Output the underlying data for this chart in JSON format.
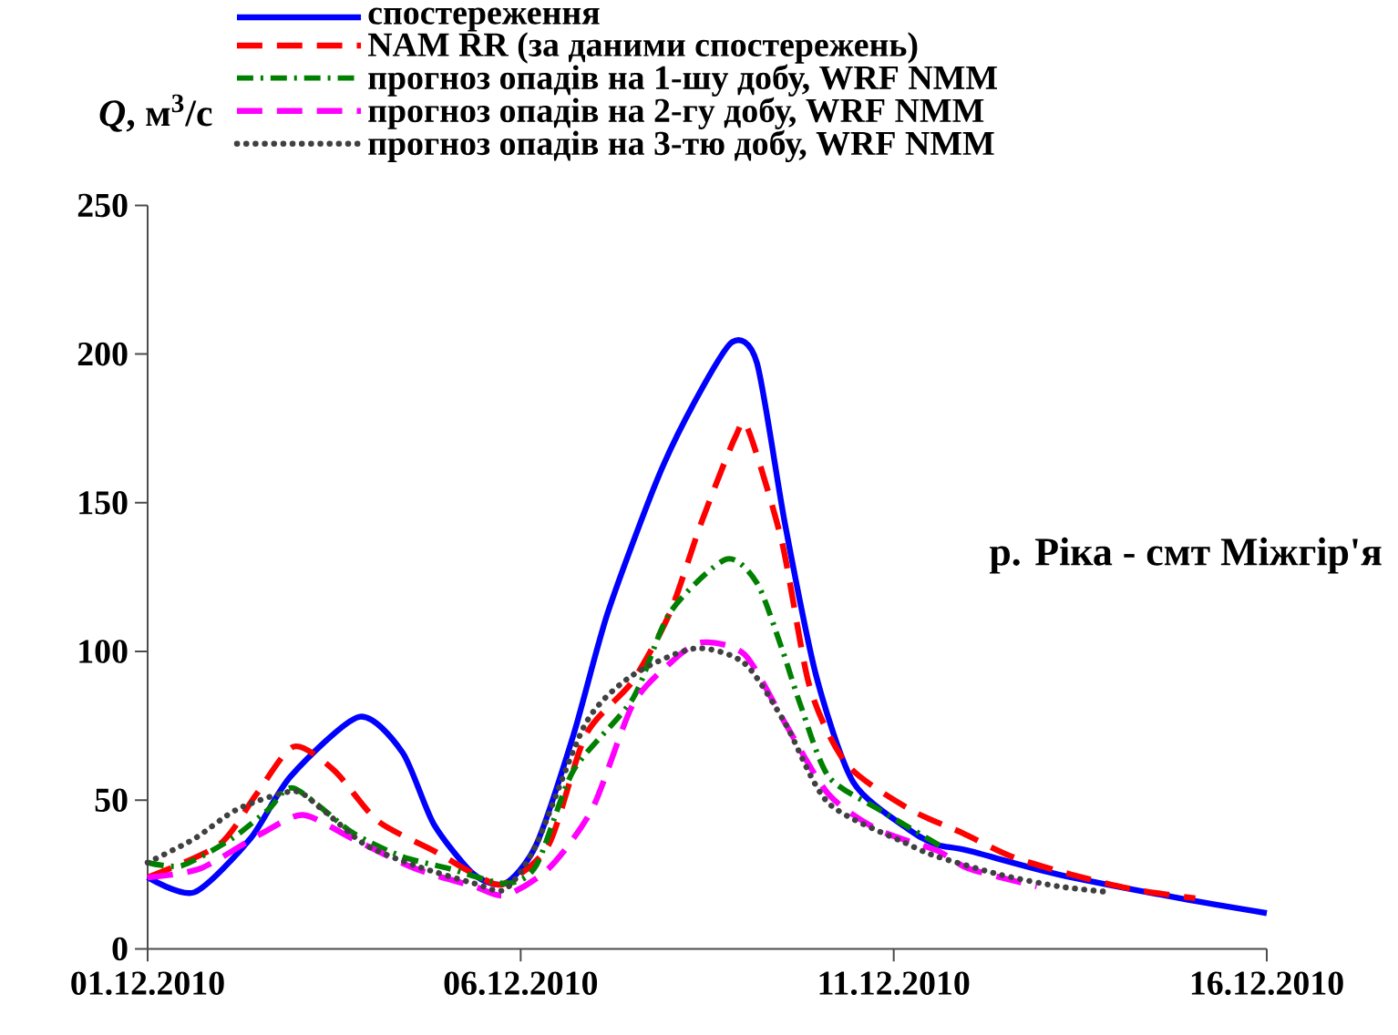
{
  "chart_data": {
    "type": "line",
    "ylabel": "*Q*, м$^{3}$/с",
    "annotations": [
      "р. Ріка - смт Міжгір'я"
    ],
    "xlim": [
      "2010-12-01",
      "2010-12-16"
    ],
    "xticks": [
      {
        "value": "2010-12-01",
        "label": "01.12.2010"
      },
      {
        "value": "2010-12-06",
        "label": "06.12.2010"
      },
      {
        "value": "2010-12-11",
        "label": "11.12.2010"
      },
      {
        "value": "2010-12-16",
        "label": "16.12.2010"
      }
    ],
    "ylim": [
      0,
      250
    ],
    "yticks": [
      0,
      50,
      100,
      150,
      200,
      250
    ],
    "legend": "top",
    "series": [
      {
        "name": "спостереження",
        "color": "#0000ff",
        "line_style": "solid",
        "x": [
          "2010-12-01T00:00",
          "2010-12-01T15:00",
          "2010-12-02T09:00",
          "2010-12-02T22:00",
          "2010-12-03T20:00",
          "2010-12-04T10:00",
          "2010-12-04T20:00",
          "2010-12-05T09:00",
          "2010-12-05T19:00",
          "2010-12-06T05:00",
          "2010-12-06T17:00",
          "2010-12-07T04:00",
          "2010-12-07T20:00",
          "2010-12-08T08:00",
          "2010-12-08T20:00",
          "2010-12-09T04:00",
          "2010-12-09T13:00",
          "2010-12-09T23:00",
          "2010-12-10T11:00",
          "2010-12-11T05:00",
          "2010-12-11T14:00",
          "2010-12-12T00:00",
          "2010-12-13T05:00",
          "2010-12-14T20:00",
          "2010-12-16T00:00"
        ],
        "values": [
          24,
          19,
          37,
          58,
          78,
          66,
          42,
          25,
          22,
          35,
          72,
          113,
          158,
          184,
          204,
          197,
          143,
          92,
          56,
          40,
          35,
          33,
          25,
          17,
          12
        ]
      },
      {
        "name": "NAM RR (за даними спостережень)",
        "color": "#ff0000",
        "line_style": "dashed",
        "x": [
          "2010-12-01T00:00",
          "2010-12-01T23:00",
          "2010-12-02T11:00",
          "2010-12-02T23:00",
          "2010-12-03T12:00",
          "2010-12-04T02:00",
          "2010-12-04T20:00",
          "2010-12-05T11:00",
          "2010-12-05T19:00",
          "2010-12-06T09:00",
          "2010-12-06T21:00",
          "2010-12-07T12:00",
          "2010-12-08T00:00",
          "2010-12-08T10:00",
          "2010-12-08T21:00",
          "2010-12-09T01:00",
          "2010-12-09T12:00",
          "2010-12-09T21:00",
          "2010-12-10T09:00",
          "2010-12-11T05:00",
          "2010-12-11T22:00",
          "2010-12-12T14:00",
          "2010-12-13T09:00",
          "2010-12-14T05:00",
          "2010-12-15T01:00"
        ],
        "values": [
          24,
          35,
          52,
          68,
          60,
          43,
          33,
          24,
          22,
          35,
          72,
          90,
          113,
          143,
          172,
          175,
          137,
          88,
          62,
          47,
          39,
          31,
          25,
          20,
          17
        ]
      },
      {
        "name": "прогноз опадів на 1-шу добу, WRF NMM",
        "color": "#008000",
        "line_style": "dashdot",
        "x": [
          "2010-12-01T00:00",
          "2010-12-01T11:00",
          "2010-12-02T03:00",
          "2010-12-02T15:00",
          "2010-12-02T23:00",
          "2010-12-03T18:00",
          "2010-12-04T10:00",
          "2010-12-05T01:00",
          "2010-12-05T19:00",
          "2010-12-06T05:00",
          "2010-12-06T17:00",
          "2010-12-07T12:00",
          "2010-12-08T00:00",
          "2010-12-08T18:00",
          "2010-12-09T04:00",
          "2010-12-09T12:00",
          "2010-12-09T18:00",
          "2010-12-10T03:00",
          "2010-12-10T19:00",
          "2010-12-11T16:00"
        ],
        "values": [
          29,
          28,
          37,
          47,
          54,
          39,
          31,
          27,
          22,
          28,
          60,
          84,
          113,
          131,
          123,
          101,
          82,
          58,
          47,
          34
        ]
      },
      {
        "name": "прогноз опадів на 2-гу добу, WRF NMM",
        "color": "#ff00ff",
        "line_style": "dashed",
        "x": [
          "2010-12-01T00:00",
          "2010-12-01T17:00",
          "2010-12-02T13:00",
          "2010-12-03T02:00",
          "2010-12-03T18:00",
          "2010-12-04T14:00",
          "2010-12-05T09:00",
          "2010-12-05T19:00",
          "2010-12-06T09:00",
          "2010-12-06T23:00",
          "2010-12-07T12:00",
          "2010-12-08T00:00",
          "2010-12-08T10:00",
          "2010-12-09T00:00",
          "2010-12-09T13:00",
          "2010-12-10T03:00",
          "2010-12-10T19:00",
          "2010-12-11T14:00",
          "2010-12-12T00:00",
          "2010-12-12T22:00"
        ],
        "values": [
          24,
          27,
          39,
          45,
          37,
          27,
          21,
          18,
          27,
          47,
          82,
          96,
          103,
          99,
          76,
          52,
          40,
          33,
          27,
          21
        ]
      },
      {
        "name": "прогноз опадів на 3-тю добу, WRF NMM",
        "color": "#404040",
        "line_style": "dotted",
        "x": [
          "2010-12-01T00:00",
          "2010-12-01T15:00",
          "2010-12-02T05:00",
          "2010-12-02T23:00",
          "2010-12-03T08:00",
          "2010-12-03T22:00",
          "2010-12-04T14:00",
          "2010-12-05T09:00",
          "2010-12-05T19:00",
          "2010-12-06T05:00",
          "2010-12-06T21:00",
          "2010-12-07T12:00",
          "2010-12-08T08:00",
          "2010-12-09T00:00",
          "2010-12-09T13:00",
          "2010-12-10T03:00",
          "2010-12-11T05:00",
          "2010-12-11T14:00",
          "2010-12-12T10:00",
          "2010-12-13T05:00",
          "2010-12-13T22:00"
        ],
        "values": [
          29,
          37,
          47,
          53,
          47,
          35,
          28,
          22,
          20,
          35,
          76,
          92,
          101,
          96,
          76,
          49,
          35,
          31,
          25,
          21,
          19
        ]
      }
    ]
  }
}
